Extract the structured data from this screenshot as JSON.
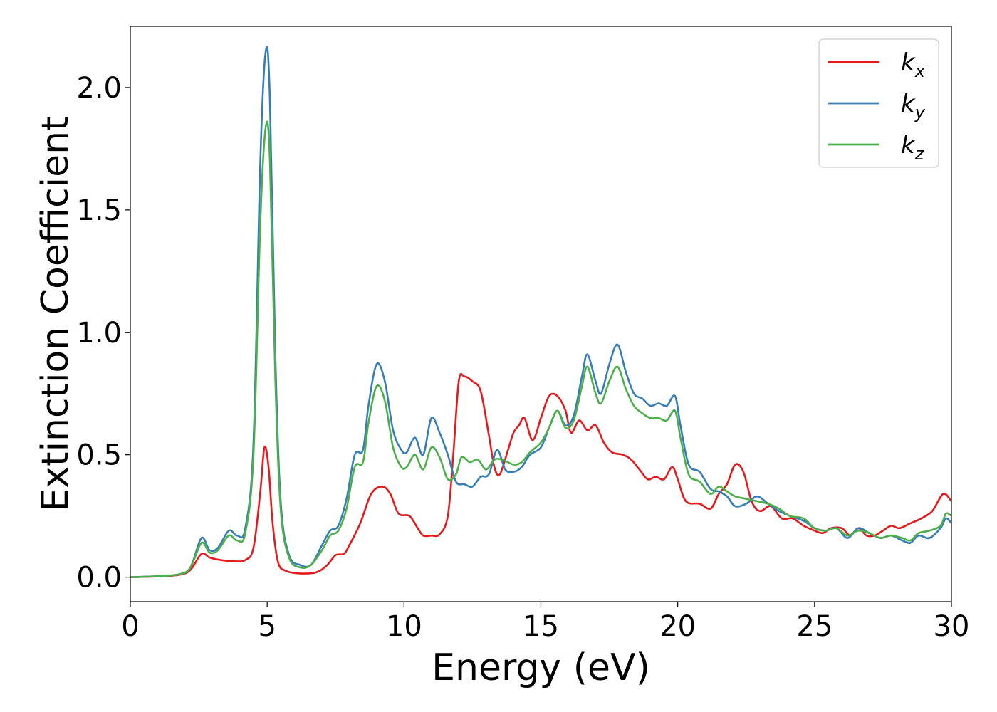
{
  "chart_data": {
    "type": "line",
    "title": "",
    "xlabel": "Energy (eV)",
    "ylabel": "Extinction Coefficient",
    "xlim": [
      0,
      30
    ],
    "ylim": [
      -0.1,
      2.25
    ],
    "xticks": [
      0,
      5,
      10,
      15,
      20,
      25,
      30
    ],
    "xtick_labels": [
      "0",
      "5",
      "10",
      "15",
      "20",
      "25",
      "30"
    ],
    "yticks": [
      0.0,
      0.5,
      1.0,
      1.5,
      2.0
    ],
    "ytick_labels": [
      "0.0",
      "0.5",
      "1.0",
      "1.5",
      "2.0"
    ],
    "grid": false,
    "legend_position": "top-right",
    "series": [
      {
        "name": "k",
        "subscript": "x",
        "color": "#e41a1c",
        "points": [
          [
            0,
            0
          ],
          [
            1,
            0.003
          ],
          [
            1.8,
            0.01
          ],
          [
            2.2,
            0.03
          ],
          [
            2.6,
            0.095
          ],
          [
            2.9,
            0.08
          ],
          [
            3.3,
            0.07
          ],
          [
            3.8,
            0.065
          ],
          [
            4.2,
            0.07
          ],
          [
            4.5,
            0.12
          ],
          [
            4.75,
            0.35
          ],
          [
            4.9,
            0.53
          ],
          [
            5.05,
            0.45
          ],
          [
            5.2,
            0.22
          ],
          [
            5.4,
            0.06
          ],
          [
            5.7,
            0.025
          ],
          [
            6.2,
            0.015
          ],
          [
            6.8,
            0.02
          ],
          [
            7.2,
            0.05
          ],
          [
            7.5,
            0.09
          ],
          [
            7.8,
            0.095
          ],
          [
            8.0,
            0.13
          ],
          [
            8.4,
            0.22
          ],
          [
            8.8,
            0.34
          ],
          [
            9.2,
            0.37
          ],
          [
            9.5,
            0.34
          ],
          [
            9.8,
            0.26
          ],
          [
            10.2,
            0.25
          ],
          [
            10.5,
            0.2
          ],
          [
            10.7,
            0.17
          ],
          [
            11.0,
            0.17
          ],
          [
            11.3,
            0.175
          ],
          [
            11.6,
            0.25
          ],
          [
            11.8,
            0.5
          ],
          [
            12.0,
            0.8
          ],
          [
            12.2,
            0.82
          ],
          [
            12.5,
            0.8
          ],
          [
            12.8,
            0.76
          ],
          [
            13.1,
            0.58
          ],
          [
            13.3,
            0.45
          ],
          [
            13.5,
            0.42
          ],
          [
            13.8,
            0.52
          ],
          [
            14.0,
            0.59
          ],
          [
            14.2,
            0.62
          ],
          [
            14.4,
            0.65
          ],
          [
            14.7,
            0.56
          ],
          [
            15.0,
            0.65
          ],
          [
            15.3,
            0.74
          ],
          [
            15.6,
            0.74
          ],
          [
            15.9,
            0.68
          ],
          [
            16.1,
            0.59
          ],
          [
            16.4,
            0.64
          ],
          [
            16.7,
            0.6
          ],
          [
            17.0,
            0.62
          ],
          [
            17.3,
            0.55
          ],
          [
            17.6,
            0.51
          ],
          [
            18.0,
            0.5
          ],
          [
            18.3,
            0.48
          ],
          [
            18.6,
            0.44
          ],
          [
            18.9,
            0.4
          ],
          [
            19.2,
            0.41
          ],
          [
            19.5,
            0.4
          ],
          [
            19.8,
            0.45
          ],
          [
            20.0,
            0.4
          ],
          [
            20.3,
            0.31
          ],
          [
            20.8,
            0.3
          ],
          [
            21.2,
            0.28
          ],
          [
            21.5,
            0.34
          ],
          [
            21.8,
            0.38
          ],
          [
            22.1,
            0.46
          ],
          [
            22.4,
            0.43
          ],
          [
            22.7,
            0.31
          ],
          [
            23.0,
            0.27
          ],
          [
            23.4,
            0.29
          ],
          [
            23.8,
            0.24
          ],
          [
            24.2,
            0.24
          ],
          [
            24.6,
            0.21
          ],
          [
            25.0,
            0.19
          ],
          [
            25.3,
            0.18
          ],
          [
            25.6,
            0.2
          ],
          [
            26.0,
            0.2
          ],
          [
            26.3,
            0.17
          ],
          [
            26.6,
            0.2
          ],
          [
            26.9,
            0.17
          ],
          [
            27.2,
            0.17
          ],
          [
            27.5,
            0.19
          ],
          [
            27.8,
            0.21
          ],
          [
            28.1,
            0.2
          ],
          [
            28.5,
            0.22
          ],
          [
            28.9,
            0.24
          ],
          [
            29.3,
            0.27
          ],
          [
            29.7,
            0.34
          ],
          [
            30.0,
            0.31
          ]
        ]
      },
      {
        "name": "k",
        "subscript": "y",
        "color": "#377eb8",
        "points": [
          [
            0,
            0
          ],
          [
            1,
            0.004
          ],
          [
            1.8,
            0.012
          ],
          [
            2.2,
            0.04
          ],
          [
            2.6,
            0.16
          ],
          [
            2.9,
            0.11
          ],
          [
            3.2,
            0.12
          ],
          [
            3.6,
            0.19
          ],
          [
            3.9,
            0.17
          ],
          [
            4.2,
            0.2
          ],
          [
            4.5,
            0.55
          ],
          [
            4.75,
            1.7
          ],
          [
            4.95,
            2.15
          ],
          [
            5.1,
            1.95
          ],
          [
            5.3,
            0.9
          ],
          [
            5.5,
            0.3
          ],
          [
            5.8,
            0.09
          ],
          [
            6.2,
            0.05
          ],
          [
            6.6,
            0.05
          ],
          [
            7.0,
            0.13
          ],
          [
            7.3,
            0.19
          ],
          [
            7.6,
            0.21
          ],
          [
            7.9,
            0.32
          ],
          [
            8.2,
            0.5
          ],
          [
            8.5,
            0.52
          ],
          [
            8.7,
            0.7
          ],
          [
            9.0,
            0.87
          ],
          [
            9.3,
            0.8
          ],
          [
            9.6,
            0.6
          ],
          [
            9.9,
            0.52
          ],
          [
            10.1,
            0.51
          ],
          [
            10.4,
            0.57
          ],
          [
            10.7,
            0.5
          ],
          [
            11.0,
            0.65
          ],
          [
            11.3,
            0.59
          ],
          [
            11.6,
            0.5
          ],
          [
            11.9,
            0.39
          ],
          [
            12.2,
            0.38
          ],
          [
            12.5,
            0.37
          ],
          [
            12.8,
            0.41
          ],
          [
            13.1,
            0.42
          ],
          [
            13.4,
            0.52
          ],
          [
            13.7,
            0.44
          ],
          [
            14.0,
            0.43
          ],
          [
            14.3,
            0.45
          ],
          [
            14.6,
            0.5
          ],
          [
            15.0,
            0.53
          ],
          [
            15.3,
            0.61
          ],
          [
            15.6,
            0.68
          ],
          [
            15.9,
            0.62
          ],
          [
            16.2,
            0.66
          ],
          [
            16.5,
            0.82
          ],
          [
            16.7,
            0.91
          ],
          [
            17.0,
            0.8
          ],
          [
            17.2,
            0.75
          ],
          [
            17.5,
            0.87
          ],
          [
            17.8,
            0.95
          ],
          [
            18.1,
            0.84
          ],
          [
            18.4,
            0.75
          ],
          [
            18.7,
            0.73
          ],
          [
            19.0,
            0.7
          ],
          [
            19.3,
            0.71
          ],
          [
            19.6,
            0.7
          ],
          [
            19.9,
            0.74
          ],
          [
            20.1,
            0.62
          ],
          [
            20.4,
            0.46
          ],
          [
            20.8,
            0.43
          ],
          [
            21.2,
            0.36
          ],
          [
            21.5,
            0.35
          ],
          [
            21.8,
            0.33
          ],
          [
            22.1,
            0.29
          ],
          [
            22.5,
            0.3
          ],
          [
            22.9,
            0.33
          ],
          [
            23.3,
            0.3
          ],
          [
            23.7,
            0.27
          ],
          [
            24.1,
            0.25
          ],
          [
            24.6,
            0.23
          ],
          [
            25.0,
            0.2
          ],
          [
            25.4,
            0.19
          ],
          [
            25.8,
            0.2
          ],
          [
            26.2,
            0.16
          ],
          [
            26.6,
            0.2
          ],
          [
            27.0,
            0.18
          ],
          [
            27.4,
            0.16
          ],
          [
            27.8,
            0.17
          ],
          [
            28.2,
            0.15
          ],
          [
            28.5,
            0.14
          ],
          [
            28.8,
            0.17
          ],
          [
            29.2,
            0.16
          ],
          [
            29.6,
            0.2
          ],
          [
            29.8,
            0.24
          ],
          [
            30.0,
            0.22
          ]
        ]
      },
      {
        "name": "k",
        "subscript": "z",
        "color": "#4daf4a",
        "points": [
          [
            0,
            0
          ],
          [
            1,
            0.004
          ],
          [
            1.8,
            0.012
          ],
          [
            2.2,
            0.04
          ],
          [
            2.6,
            0.14
          ],
          [
            2.9,
            0.1
          ],
          [
            3.2,
            0.11
          ],
          [
            3.6,
            0.17
          ],
          [
            3.9,
            0.15
          ],
          [
            4.2,
            0.18
          ],
          [
            4.5,
            0.5
          ],
          [
            4.75,
            1.45
          ],
          [
            4.95,
            1.84
          ],
          [
            5.1,
            1.7
          ],
          [
            5.3,
            0.8
          ],
          [
            5.5,
            0.27
          ],
          [
            5.8,
            0.08
          ],
          [
            6.2,
            0.04
          ],
          [
            6.6,
            0.05
          ],
          [
            7.0,
            0.11
          ],
          [
            7.3,
            0.17
          ],
          [
            7.6,
            0.19
          ],
          [
            7.9,
            0.28
          ],
          [
            8.2,
            0.45
          ],
          [
            8.5,
            0.47
          ],
          [
            8.7,
            0.63
          ],
          [
            9.0,
            0.78
          ],
          [
            9.3,
            0.72
          ],
          [
            9.6,
            0.53
          ],
          [
            9.9,
            0.45
          ],
          [
            10.1,
            0.45
          ],
          [
            10.4,
            0.5
          ],
          [
            10.7,
            0.44
          ],
          [
            11.0,
            0.53
          ],
          [
            11.3,
            0.49
          ],
          [
            11.6,
            0.4
          ],
          [
            11.9,
            0.42
          ],
          [
            12.1,
            0.49
          ],
          [
            12.4,
            0.47
          ],
          [
            12.7,
            0.48
          ],
          [
            13.0,
            0.44
          ],
          [
            13.3,
            0.48
          ],
          [
            13.6,
            0.48
          ],
          [
            14.0,
            0.46
          ],
          [
            14.3,
            0.47
          ],
          [
            14.6,
            0.51
          ],
          [
            15.0,
            0.55
          ],
          [
            15.3,
            0.61
          ],
          [
            15.6,
            0.68
          ],
          [
            15.9,
            0.61
          ],
          [
            16.2,
            0.64
          ],
          [
            16.5,
            0.78
          ],
          [
            16.7,
            0.86
          ],
          [
            17.0,
            0.75
          ],
          [
            17.2,
            0.71
          ],
          [
            17.5,
            0.8
          ],
          [
            17.8,
            0.86
          ],
          [
            18.1,
            0.77
          ],
          [
            18.4,
            0.7
          ],
          [
            18.7,
            0.67
          ],
          [
            19.0,
            0.65
          ],
          [
            19.3,
            0.65
          ],
          [
            19.6,
            0.64
          ],
          [
            19.9,
            0.68
          ],
          [
            20.1,
            0.57
          ],
          [
            20.4,
            0.42
          ],
          [
            20.8,
            0.39
          ],
          [
            21.2,
            0.34
          ],
          [
            21.5,
            0.37
          ],
          [
            21.8,
            0.35
          ],
          [
            22.1,
            0.33
          ],
          [
            22.5,
            0.32
          ],
          [
            22.9,
            0.31
          ],
          [
            23.3,
            0.3
          ],
          [
            23.7,
            0.28
          ],
          [
            24.1,
            0.25
          ],
          [
            24.6,
            0.24
          ],
          [
            25.0,
            0.2
          ],
          [
            25.4,
            0.19
          ],
          [
            25.8,
            0.2
          ],
          [
            26.2,
            0.17
          ],
          [
            26.6,
            0.19
          ],
          [
            27.0,
            0.18
          ],
          [
            27.4,
            0.16
          ],
          [
            27.8,
            0.17
          ],
          [
            28.2,
            0.16
          ],
          [
            28.5,
            0.15
          ],
          [
            28.8,
            0.18
          ],
          [
            29.2,
            0.19
          ],
          [
            29.6,
            0.21
          ],
          [
            29.8,
            0.26
          ],
          [
            30.0,
            0.25
          ]
        ]
      }
    ]
  }
}
